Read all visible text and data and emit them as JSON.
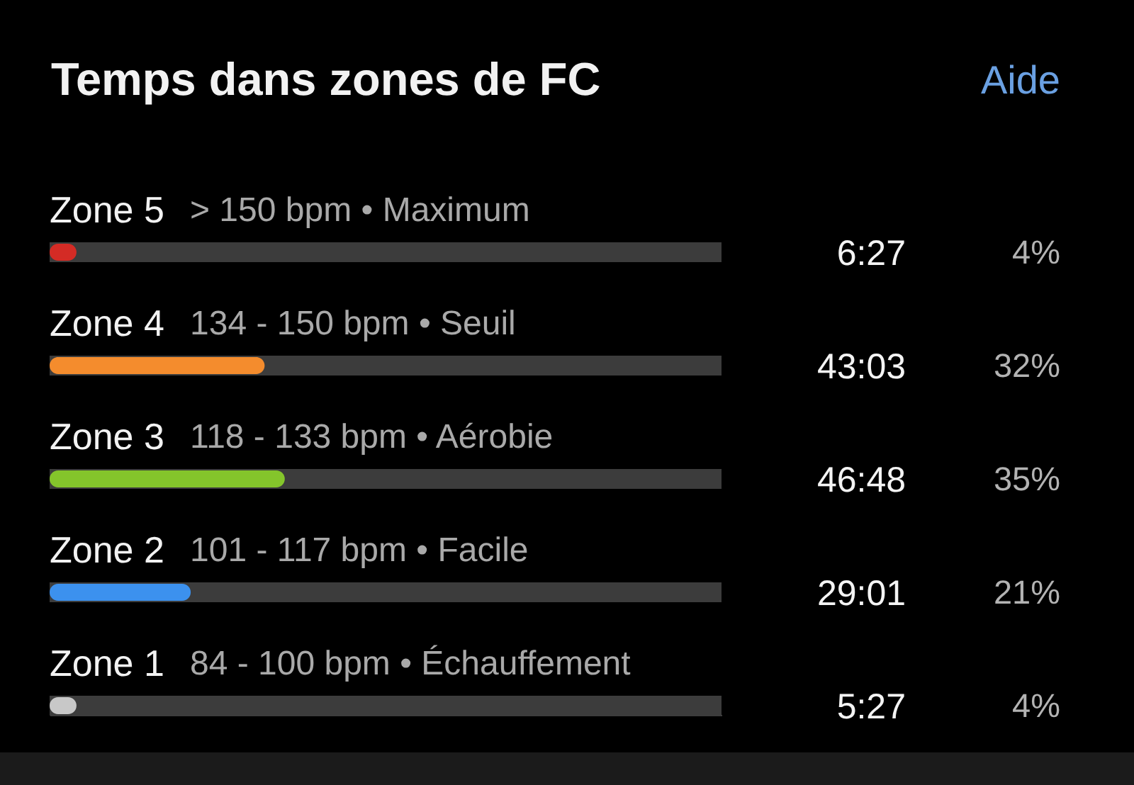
{
  "chart_data": {
    "type": "bar",
    "title": "Temps dans zones de FC",
    "orientation": "horizontal",
    "categories": [
      "Zone 5",
      "Zone 4",
      "Zone 3",
      "Zone 2",
      "Zone 1"
    ],
    "values": [
      4,
      32,
      35,
      21,
      4
    ],
    "colors": [
      "#d42b25",
      "#f48c2d",
      "#84c52b",
      "#3c91ee",
      "#c8c8c8"
    ],
    "value_labels": [
      "4%",
      "32%",
      "35%",
      "21%",
      "4%"
    ],
    "xlim": [
      0,
      100
    ],
    "tick_labels": "y",
    "annotations": [
      "Aide",
      "> 150 bpm • Maximum",
      "134 - 150 bpm • Seuil",
      "118 - 133 bpm • Aérobie",
      "101 - 117 bpm • Facile",
      "84 - 100 bpm • Échauffement",
      "6:27",
      "43:03",
      "46:48",
      "29:01",
      "5:27"
    ]
  }
}
